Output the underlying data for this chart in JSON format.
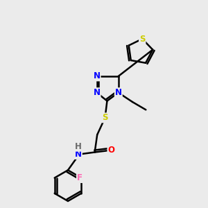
{
  "bg_color": "#ebebeb",
  "bond_color": "#000000",
  "bond_width": 1.8,
  "atom_colors": {
    "N": "#0000ff",
    "S": "#cccc00",
    "O": "#ff0000",
    "F": "#ff69b4",
    "H": "#696969",
    "C": "#000000"
  },
  "font_size": 8.5,
  "fig_size": [
    3.0,
    3.0
  ],
  "dpi": 100
}
